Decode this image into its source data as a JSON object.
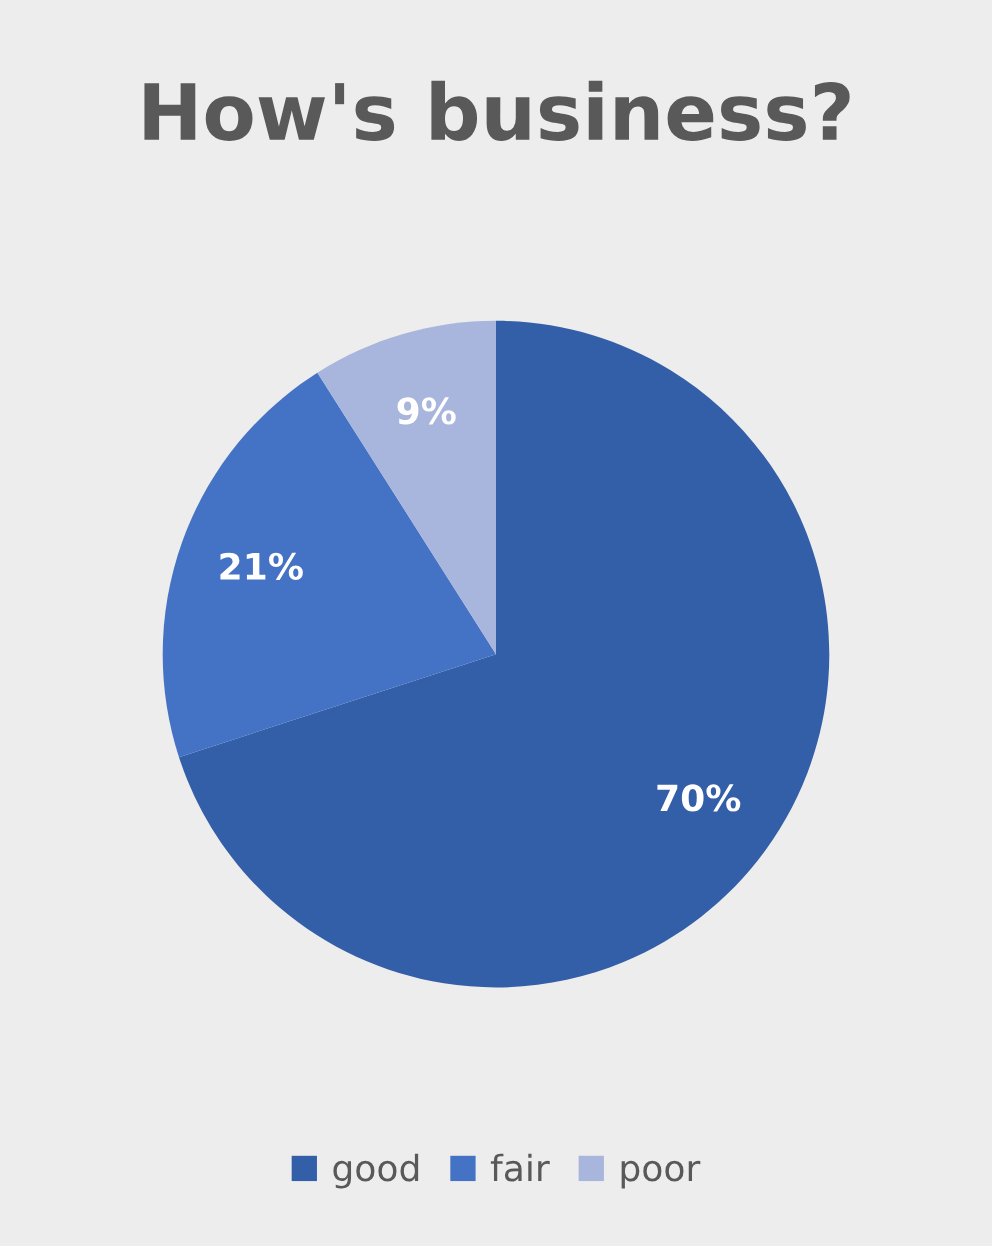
{
  "chart_data": {
    "type": "pie",
    "title": "How's business?",
    "categories": [
      "good",
      "fair",
      "poor"
    ],
    "values": [
      70,
      21,
      9
    ],
    "colors": [
      "#335ea8",
      "#4472c4",
      "#a8b5dc"
    ],
    "value_labels": [
      "70%",
      "21%",
      "9%"
    ],
    "legend": "bottom"
  }
}
